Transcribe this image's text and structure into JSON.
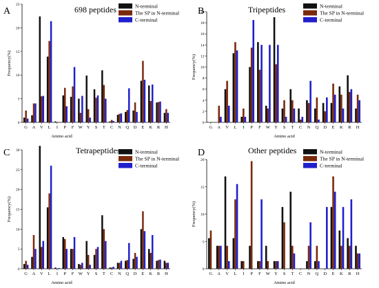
{
  "colors": {
    "n_terminal": "#111111",
    "sp_n_terminal": "#7a2a0c",
    "c_terminal": "#2020cc"
  },
  "chart_data": [
    {
      "type": "bar",
      "panel": "A",
      "title": "698 peptides",
      "xlabel": "Amino acid",
      "ylabel": "Frequency(%)",
      "ylim": [
        0,
        25
      ],
      "yticks": [
        0,
        5,
        10,
        15,
        20,
        25
      ],
      "categories": [
        "G",
        "A",
        "V",
        "L",
        "I",
        "P",
        "F",
        "W",
        "Y",
        "S",
        "T",
        "C",
        "N",
        "Q",
        "D",
        "E",
        "K",
        "R",
        "H"
      ],
      "series": [
        {
          "name": "N-terminal",
          "values": [
            1.0,
            1.5,
            22.4,
            13.9,
            0.2,
            5.7,
            5.4,
            5.0,
            9.9,
            7.0,
            11.0,
            0.2,
            1.6,
            2.2,
            2.5,
            8.8,
            7.8,
            4.2,
            2.0
          ]
        },
        {
          "name": "The SP in N-terminal",
          "values": [
            2.5,
            4.0,
            5.5,
            17.2,
            0.0,
            7.3,
            7.6,
            2.0,
            2.8,
            5.2,
            7.9,
            0.5,
            1.8,
            2.6,
            4.2,
            13.0,
            4.5,
            4.3,
            2.8
          ]
        },
        {
          "name": "C-terminal",
          "values": [
            0.8,
            4.0,
            5.6,
            21.4,
            0.0,
            3.4,
            11.7,
            5.6,
            1.0,
            5.7,
            5.0,
            0.3,
            1.9,
            7.2,
            2.2,
            9.0,
            8.0,
            4.4,
            2.0
          ]
        }
      ]
    },
    {
      "type": "bar",
      "panel": "B",
      "title": "Tripeptides",
      "xlabel": "Amino acid",
      "ylabel": "Frequency(%)",
      "ylim": [
        0,
        20
      ],
      "yticks": [
        0,
        2,
        4,
        6,
        8,
        10,
        12,
        14,
        16,
        18,
        20
      ],
      "categories": [
        "G",
        "A",
        "V",
        "L",
        "I",
        "P",
        "F",
        "W",
        "Y",
        "S",
        "T",
        "C",
        "N",
        "Q",
        "D",
        "E",
        "K",
        "R",
        "H"
      ],
      "series": [
        {
          "name": "N-terminal",
          "values": [
            0.0,
            0.0,
            6.0,
            12.5,
            1.0,
            10.0,
            14.5,
            3.0,
            19.0,
            2.5,
            6.0,
            2.5,
            4.0,
            2.5,
            3.5,
            3.5,
            6.5,
            8.5,
            2.5
          ]
        },
        {
          "name": "The SP in N-terminal",
          "values": [
            0.0,
            3.0,
            7.5,
            14.5,
            2.5,
            13.5,
            9.5,
            2.5,
            10.5,
            4.0,
            4.0,
            0.5,
            3.5,
            4.5,
            2.0,
            7.0,
            5.0,
            5.5,
            5.0
          ]
        },
        {
          "name": "C-terminal",
          "values": [
            0.0,
            1.0,
            3.0,
            13.0,
            1.0,
            18.5,
            14.0,
            14.0,
            14.0,
            1.0,
            2.5,
            1.0,
            7.5,
            0.5,
            4.5,
            5.0,
            2.5,
            6.0,
            4.0
          ]
        }
      ]
    },
    {
      "type": "bar",
      "panel": "C",
      "title": "Tetrapeptides",
      "xlabel": "Amino acid",
      "ylabel": "Frequency(%)",
      "ylim": [
        0,
        30
      ],
      "yticks": [
        0,
        5,
        10,
        15,
        20,
        25,
        30
      ],
      "categories": [
        "G",
        "A",
        "V",
        "L",
        "I",
        "P",
        "F",
        "W",
        "Y",
        "S",
        "T",
        "C",
        "N",
        "Q",
        "D",
        "E",
        "K",
        "R",
        "H"
      ],
      "series": [
        {
          "name": "N-terminal",
          "values": [
            1.2,
            3.0,
            31.0,
            15.5,
            0.3,
            8.0,
            5.0,
            1.2,
            7.0,
            3.5,
            13.5,
            0.3,
            1.5,
            2.0,
            2.5,
            10.0,
            5.0,
            2.0,
            2.0
          ]
        },
        {
          "name": "The SP in N-terminal",
          "values": [
            2.0,
            8.5,
            5.5,
            19.0,
            0.0,
            7.5,
            5.0,
            1.0,
            3.5,
            5.0,
            10.0,
            0.3,
            1.5,
            2.2,
            4.0,
            14.5,
            4.0,
            2.2,
            1.5
          ]
        },
        {
          "name": "C-terminal",
          "values": [
            1.0,
            5.0,
            7.0,
            26.0,
            0.2,
            5.0,
            8.0,
            1.5,
            1.0,
            5.5,
            7.0,
            0.5,
            2.0,
            6.5,
            3.0,
            9.5,
            8.5,
            2.3,
            1.5
          ]
        }
      ]
    },
    {
      "type": "bar",
      "panel": "D",
      "title": "Other peptides",
      "xlabel": "Amino acid",
      "ylabel": "Frequency(%)",
      "ylim": [
        0,
        20
      ],
      "yticks": [
        0,
        5,
        10,
        15,
        20
      ],
      "categories": [
        "G",
        "A",
        "V",
        "L",
        "I",
        "P",
        "F",
        "W",
        "Y",
        "S",
        "T",
        "C",
        "N",
        "Q",
        "D",
        "E",
        "K",
        "R",
        "H"
      ],
      "series": [
        {
          "name": "N-terminal",
          "values": [
            5.6,
            4.2,
            16.9,
            5.6,
            1.4,
            4.2,
            1.4,
            4.2,
            1.4,
            11.3,
            14.1,
            0.0,
            1.4,
            1.4,
            0.0,
            11.3,
            7.0,
            5.6,
            4.2
          ]
        },
        {
          "name": "The SP in N-terminal",
          "values": [
            7.0,
            4.2,
            4.2,
            12.7,
            1.4,
            19.7,
            1.4,
            1.4,
            1.4,
            8.5,
            4.2,
            0.0,
            4.2,
            4.2,
            0.0,
            16.9,
            4.2,
            4.2,
            2.8
          ]
        },
        {
          "name": "C-terminal",
          "values": [
            0.0,
            4.2,
            1.4,
            15.5,
            0.0,
            0.0,
            12.7,
            0.0,
            1.4,
            0.0,
            2.8,
            0.0,
            8.5,
            1.4,
            11.3,
            14.1,
            11.3,
            12.7,
            2.8
          ]
        }
      ]
    }
  ]
}
